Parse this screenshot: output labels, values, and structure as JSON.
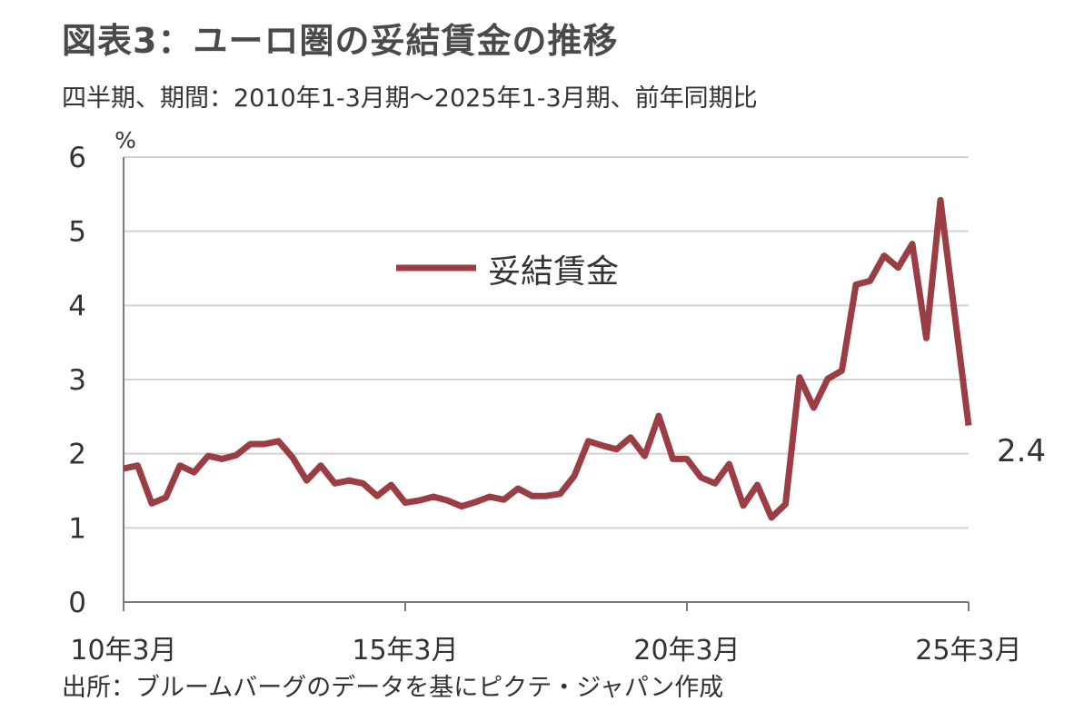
{
  "header": {
    "title": "図表3：ユーロ圏の妥結賃金の推移",
    "subtitle": "四半期、期間：2010年1-3月期～2025年1-3月期、前年同期比"
  },
  "footer": {
    "source": "出所：ブルームバーグのデータを基にピクテ・ジャパン作成"
  },
  "chart_data": {
    "type": "line",
    "ylabel": "%",
    "ylim": [
      0,
      6
    ],
    "yticks": [
      "0",
      "1",
      "2",
      "3",
      "4",
      "5",
      "6"
    ],
    "xticks": [
      {
        "label": "10年3月",
        "index": 0
      },
      {
        "label": "15年3月",
        "index": 20
      },
      {
        "label": "20年3月",
        "index": 40
      },
      {
        "label": "25年3月",
        "index": 60
      }
    ],
    "grid": "horizontal",
    "legend_position": "top-center",
    "series": [
      {
        "name": "妥結賃金",
        "color": "#9b3d44",
        "x": [
          "2010Q1",
          "2010Q2",
          "2010Q3",
          "2010Q4",
          "2011Q1",
          "2011Q2",
          "2011Q3",
          "2011Q4",
          "2012Q1",
          "2012Q2",
          "2012Q3",
          "2012Q4",
          "2013Q1",
          "2013Q2",
          "2013Q3",
          "2013Q4",
          "2014Q1",
          "2014Q2",
          "2014Q3",
          "2014Q4",
          "2015Q1",
          "2015Q2",
          "2015Q3",
          "2015Q4",
          "2016Q1",
          "2016Q2",
          "2016Q3",
          "2016Q4",
          "2017Q1",
          "2017Q2",
          "2017Q3",
          "2017Q4",
          "2018Q1",
          "2018Q2",
          "2018Q3",
          "2018Q4",
          "2019Q1",
          "2019Q2",
          "2019Q3",
          "2019Q4",
          "2020Q1",
          "2020Q2",
          "2020Q3",
          "2020Q4",
          "2021Q1",
          "2021Q2",
          "2021Q3",
          "2021Q4",
          "2022Q1",
          "2022Q2",
          "2022Q3",
          "2022Q4",
          "2023Q1",
          "2023Q2",
          "2023Q3",
          "2023Q4",
          "2024Q1",
          "2024Q2",
          "2024Q3",
          "2024Q4",
          "2025Q1"
        ],
        "values": [
          1.8,
          1.84,
          1.33,
          1.41,
          1.84,
          1.75,
          1.97,
          1.93,
          1.98,
          2.13,
          2.13,
          2.17,
          1.95,
          1.64,
          1.84,
          1.6,
          1.64,
          1.6,
          1.43,
          1.58,
          1.34,
          1.37,
          1.42,
          1.37,
          1.29,
          1.35,
          1.42,
          1.38,
          1.53,
          1.43,
          1.43,
          1.46,
          1.7,
          2.17,
          2.11,
          2.06,
          2.22,
          1.97,
          2.51,
          1.93,
          1.93,
          1.68,
          1.6,
          1.86,
          1.3,
          1.58,
          1.14,
          1.32,
          3.03,
          2.62,
          3.01,
          3.12,
          4.28,
          4.33,
          4.67,
          4.51,
          4.83,
          3.56,
          5.42,
          3.9,
          2.38
        ]
      }
    ],
    "annotations": [
      {
        "text": "2.4",
        "target": "last-point"
      }
    ]
  }
}
